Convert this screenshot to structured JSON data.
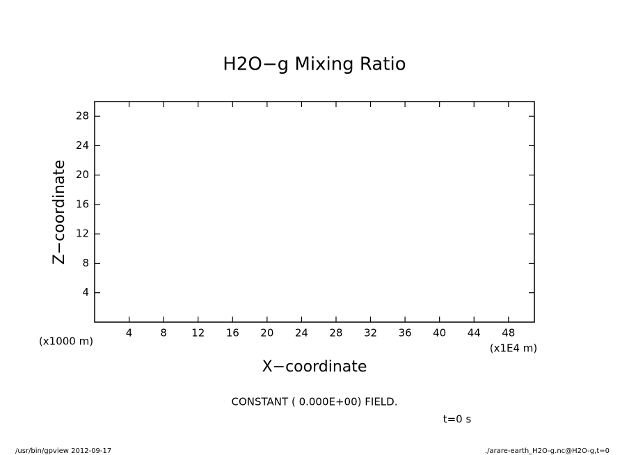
{
  "chart_data": {
    "type": "line",
    "title": "H2O−g Mixing Ratio",
    "xlabel": "X−coordinate",
    "ylabel": "Z−coordinate",
    "xunit": "(x1E4 m)",
    "yunit": "(x1000 m)",
    "annotation": "CONSTANT ( 0.000E+00) FIELD.",
    "time_label": "t=0 s",
    "footer_left": "/usr/bin/gpview  2012-09-17",
    "footer_right": "./arare-earth_H2O-g.nc@H2O-g,t=0",
    "series": [],
    "xlim": [
      0,
      51
    ],
    "ylim": [
      0,
      30
    ],
    "xticks": [
      4,
      8,
      12,
      16,
      20,
      24,
      28,
      32,
      36,
      40,
      44,
      48
    ],
    "yticks": [
      4,
      8,
      12,
      16,
      20,
      24,
      28
    ],
    "grid": false
  }
}
